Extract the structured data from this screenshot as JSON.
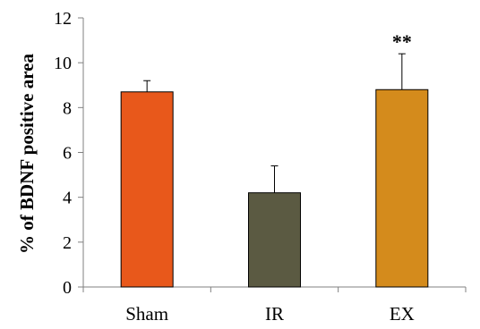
{
  "chart_data": {
    "type": "bar",
    "categories": [
      "Sham",
      "IR",
      "EX"
    ],
    "values": [
      8.7,
      4.2,
      8.8
    ],
    "error_bars": [
      0.5,
      1.2,
      1.6
    ],
    "colors": [
      "#e8581b",
      "#5b5a42",
      "#d48b1c"
    ],
    "annotations": [
      "",
      "",
      "**"
    ],
    "ylabel": "% of BDNF positive area",
    "xlabel": "",
    "ylim": [
      0,
      12
    ],
    "yticks": [
      0,
      2,
      4,
      6,
      8,
      10,
      12
    ],
    "grid": false,
    "legend": "none"
  }
}
